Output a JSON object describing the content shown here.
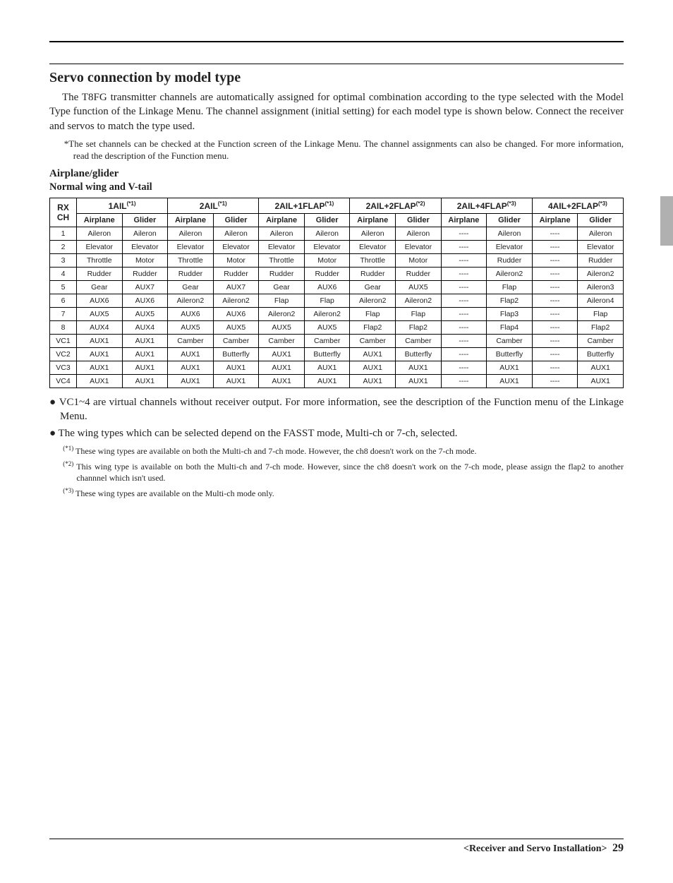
{
  "section_title": "Servo connection by model type",
  "intro_para": "The T8FG transmitter channels are automatically assigned for optimal combination according to the type selected with the Model Type function of the Linkage Menu. The channel assignment (initial setting) for each model type is shown below. Connect the receiver and servos to match the type used.",
  "star_note": "*The set channels can be checked at the Function screen of the Linkage Menu. The channel assignments can also be changed. For more information, read the description of the Function menu.",
  "sub_h1": "Airplane/glider",
  "sub_h2": "Normal wing and V-tail",
  "table": {
    "corner": "RX CH",
    "groups": [
      {
        "label": "1AIL",
        "sup": "(*1)"
      },
      {
        "label": "2AIL",
        "sup": "(*1)"
      },
      {
        "label": "2AIL+1FLAP",
        "sup": "(*1)"
      },
      {
        "label": "2AIL+2FLAP",
        "sup": "(*2)"
      },
      {
        "label": "2AIL+4FLAP",
        "sup": "(*3)"
      },
      {
        "label": "4AIL+2FLAP",
        "sup": "(*3)"
      }
    ],
    "sub_headers": [
      "Airplane",
      "Glider"
    ],
    "rows": [
      {
        "ch": "1",
        "c": [
          "Aileron",
          "Aileron",
          "Aileron",
          "Aileron",
          "Aileron",
          "Aileron",
          "Aileron",
          "Aileron",
          "----",
          "Aileron",
          "----",
          "Aileron"
        ]
      },
      {
        "ch": "2",
        "c": [
          "Elevator",
          "Elevator",
          "Elevator",
          "Elevator",
          "Elevator",
          "Elevator",
          "Elevator",
          "Elevator",
          "----",
          "Elevator",
          "----",
          "Elevator"
        ]
      },
      {
        "ch": "3",
        "c": [
          "Throttle",
          "Motor",
          "Throttle",
          "Motor",
          "Throttle",
          "Motor",
          "Throttle",
          "Motor",
          "----",
          "Rudder",
          "----",
          "Rudder"
        ]
      },
      {
        "ch": "4",
        "c": [
          "Rudder",
          "Rudder",
          "Rudder",
          "Rudder",
          "Rudder",
          "Rudder",
          "Rudder",
          "Rudder",
          "----",
          "Aileron2",
          "----",
          "Aileron2"
        ]
      },
      {
        "ch": "5",
        "c": [
          "Gear",
          "AUX7",
          "Gear",
          "AUX7",
          "Gear",
          "AUX6",
          "Gear",
          "AUX5",
          "----",
          "Flap",
          "----",
          "Aileron3"
        ]
      },
      {
        "ch": "6",
        "c": [
          "AUX6",
          "AUX6",
          "Aileron2",
          "Aileron2",
          "Flap",
          "Flap",
          "Aileron2",
          "Aileron2",
          "----",
          "Flap2",
          "----",
          "Aileron4"
        ]
      },
      {
        "ch": "7",
        "c": [
          "AUX5",
          "AUX5",
          "AUX6",
          "AUX6",
          "Aileron2",
          "Aileron2",
          "Flap",
          "Flap",
          "----",
          "Flap3",
          "----",
          "Flap"
        ]
      },
      {
        "ch": "8",
        "c": [
          "AUX4",
          "AUX4",
          "AUX5",
          "AUX5",
          "AUX5",
          "AUX5",
          "Flap2",
          "Flap2",
          "----",
          "Flap4",
          "----",
          "Flap2"
        ]
      },
      {
        "ch": "VC1",
        "c": [
          "AUX1",
          "AUX1",
          "Camber",
          "Camber",
          "Camber",
          "Camber",
          "Camber",
          "Camber",
          "----",
          "Camber",
          "----",
          "Camber"
        ]
      },
      {
        "ch": "VC2",
        "c": [
          "AUX1",
          "AUX1",
          "AUX1",
          "Butterfly",
          "AUX1",
          "Butterfly",
          "AUX1",
          "Butterfly",
          "----",
          "Butterfly",
          "----",
          "Butterfly"
        ]
      },
      {
        "ch": "VC3",
        "c": [
          "AUX1",
          "AUX1",
          "AUX1",
          "AUX1",
          "AUX1",
          "AUX1",
          "AUX1",
          "AUX1",
          "----",
          "AUX1",
          "----",
          "AUX1"
        ]
      },
      {
        "ch": "VC4",
        "c": [
          "AUX1",
          "AUX1",
          "AUX1",
          "AUX1",
          "AUX1",
          "AUX1",
          "AUX1",
          "AUX1",
          "----",
          "AUX1",
          "----",
          "AUX1"
        ]
      }
    ]
  },
  "bullets": [
    "● VC1~4 are virtual channels without receiver output. For more information, see the description of the Function menu of the Linkage Menu.",
    "● The wing types which can be selected depend on the FASST mode, Multi-ch or 7-ch, selected."
  ],
  "footnotes": [
    {
      "sup": "(*1)",
      "text": " These wing types are available on both the Multi-ch and 7-ch mode. However, the ch8 doesn't work on the 7-ch mode."
    },
    {
      "sup": "(*2)",
      "text": " This wing type is available on both the Multi-ch and 7-ch mode. However, since the ch8 doesn't work on the 7-ch mode, please assign the flap2 to another channnel which isn't used."
    },
    {
      "sup": "(*3)",
      "text": " These wing types are available on the Multi-ch mode only."
    }
  ],
  "footer_label": "<Receiver and Servo Installation>",
  "page_number": "29"
}
